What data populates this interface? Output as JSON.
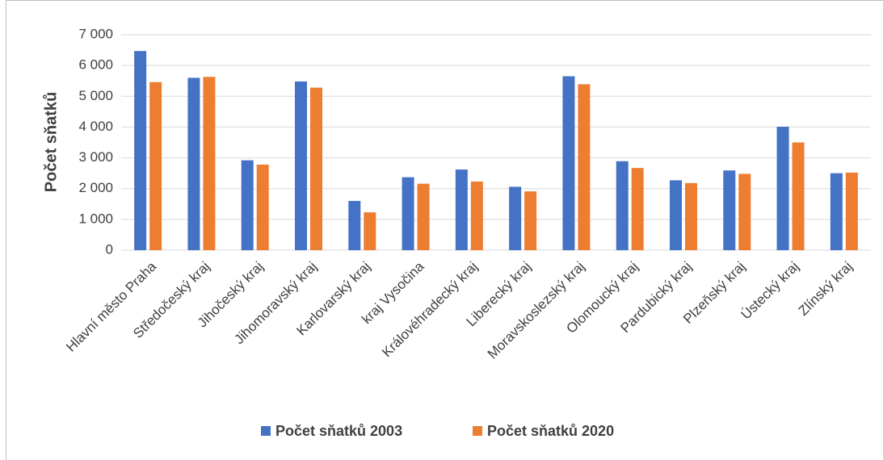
{
  "chart_data": {
    "type": "bar",
    "y_label": "Počet sňatků",
    "categories": [
      "Hlavní město Praha",
      "Středočeský kraj",
      "Jihočeský kraj",
      "Jihomoravský kraj",
      "Karlovarský kraj",
      "kraj Vysočina",
      "Královéhradecký kraj",
      "Liberecký kraj",
      "Moravskoslezský kraj",
      "Olomoucký kraj",
      "Pardubický kraj",
      "Plzeňský kraj",
      "Ústecký kraj",
      "Zlínský kraj"
    ],
    "series": [
      {
        "name": "Počet sňatků 2003",
        "color": "#4472c4",
        "values": [
          6470,
          5600,
          2920,
          5480,
          1600,
          2370,
          2620,
          2060,
          5650,
          2890,
          2270,
          2590,
          4010,
          2500
        ]
      },
      {
        "name": "Počet sňatků 2020",
        "color": "#ed7d31",
        "values": [
          5460,
          5630,
          2780,
          5280,
          1230,
          2160,
          2230,
          1910,
          5390,
          2670,
          2180,
          2480,
          3500,
          2520
        ]
      }
    ],
    "ylim": [
      0,
      7000
    ],
    "yticks": [
      0,
      {
        "value": 1000,
        "label": "1 000"
      },
      {
        "value": 2000,
        "label": "2 000"
      },
      {
        "value": 3000,
        "label": "3 000"
      },
      {
        "value": 4000,
        "label": "4 000"
      },
      {
        "value": 5000,
        "label": "5 000"
      },
      {
        "value": 6000,
        "label": "6 000"
      },
      {
        "value": 7000,
        "label": "7 000"
      }
    ],
    "grid": true,
    "legend": "bottom"
  }
}
